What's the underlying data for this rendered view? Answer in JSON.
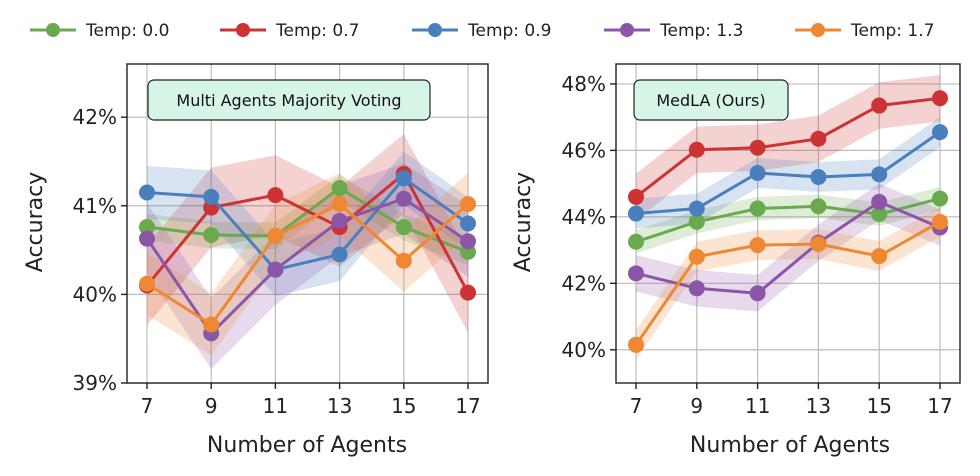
{
  "legend": [
    {
      "name": "Temp: 0.0",
      "color": "#6aaa4f"
    },
    {
      "name": "Temp: 0.7",
      "color": "#cc3333"
    },
    {
      "name": "Temp: 0.9",
      "color": "#4a7fbe"
    },
    {
      "name": "Temp: 1.3",
      "color": "#8b55a8"
    },
    {
      "name": "Temp: 1.7",
      "color": "#ee8833"
    }
  ],
  "chart_data": [
    {
      "type": "line",
      "title": "Multi Agents Majority Voting",
      "xlabel": "Number of Agents",
      "ylabel": "Accuracy",
      "x": [
        7,
        9,
        11,
        13,
        15,
        17
      ],
      "x_ticks": [
        "7",
        "9",
        "11",
        "13",
        "15",
        "17"
      ],
      "y_ticks": [
        39,
        40,
        41,
        42
      ],
      "y_tick_labels": [
        "39%",
        "40%",
        "41%",
        "42%"
      ],
      "ylim": [
        39.0,
        42.6
      ],
      "grid": true,
      "series": [
        {
          "name": "Temp: 0.0",
          "values": [
            40.76,
            40.67,
            40.66,
            41.2,
            40.76,
            40.48
          ],
          "band": 0.15
        },
        {
          "name": "Temp: 0.7",
          "values": [
            40.1,
            40.98,
            41.12,
            40.76,
            41.36,
            40.02
          ],
          "band": 0.45
        },
        {
          "name": "Temp: 0.9",
          "values": [
            41.15,
            41.1,
            40.28,
            40.45,
            41.31,
            40.8
          ],
          "band": 0.3
        },
        {
          "name": "Temp: 1.3",
          "values": [
            40.63,
            39.56,
            40.28,
            40.83,
            41.08,
            40.6
          ],
          "band": 0.4
        },
        {
          "name": "Temp: 1.7",
          "values": [
            40.12,
            39.66,
            40.66,
            41.02,
            40.38,
            41.02
          ],
          "band": 0.35
        }
      ]
    },
    {
      "type": "line",
      "title": "MedLA (Ours)",
      "xlabel": "Number of Agents",
      "ylabel": "Accuracy",
      "x": [
        7,
        9,
        11,
        13,
        15,
        17
      ],
      "x_ticks": [
        "7",
        "9",
        "11",
        "13",
        "15",
        "17"
      ],
      "y_ticks": [
        40,
        42,
        44,
        46,
        48
      ],
      "y_tick_labels": [
        "40%",
        "42%",
        "44%",
        "46%",
        "48%"
      ],
      "ylim": [
        39.0,
        48.6
      ],
      "grid": true,
      "series": [
        {
          "name": "Temp: 0.0",
          "values": [
            43.25,
            43.85,
            44.25,
            44.32,
            44.08,
            44.55
          ],
          "band": 0.35
        },
        {
          "name": "Temp: 0.7",
          "values": [
            44.6,
            46.02,
            46.08,
            46.35,
            47.35,
            47.57
          ],
          "band": 0.7
        },
        {
          "name": "Temp: 0.9",
          "values": [
            44.1,
            44.25,
            45.32,
            45.2,
            45.28,
            46.55
          ],
          "band": 0.45
        },
        {
          "name": "Temp: 1.3",
          "values": [
            42.3,
            41.85,
            41.7,
            43.22,
            44.45,
            43.68
          ],
          "band": 0.55
        },
        {
          "name": "Temp: 1.7",
          "values": [
            40.15,
            42.8,
            43.15,
            43.18,
            42.82,
            43.85
          ],
          "band": 0.45
        }
      ]
    }
  ]
}
